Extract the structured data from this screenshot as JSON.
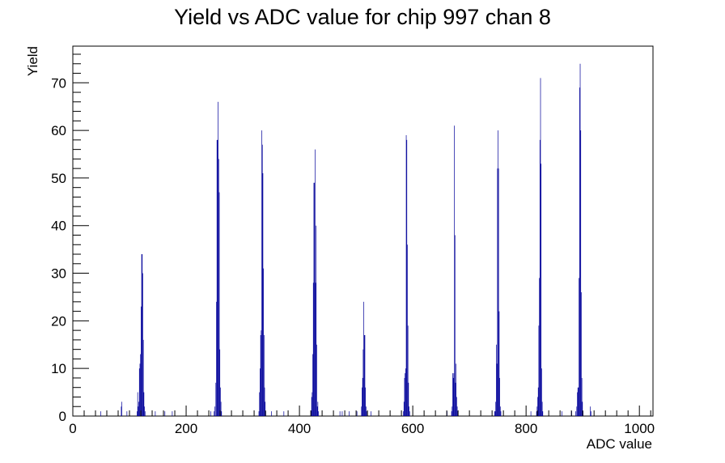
{
  "chart_data": {
    "type": "bar",
    "title": "Yield vs ADC value for chip 997 chan 8",
    "xlabel": "ADC value",
    "ylabel": "Yield",
    "xlim": [
      0,
      1024
    ],
    "ylim": [
      0,
      77.7
    ],
    "x_ticks": [
      0,
      200,
      400,
      600,
      800,
      1000
    ],
    "y_ticks": [
      0,
      10,
      20,
      30,
      40,
      50,
      60,
      70
    ],
    "grid": false,
    "legend": "none",
    "color": "#000099",
    "bin_width": 1,
    "bins": [
      [
        49,
        1
      ],
      [
        85,
        2
      ],
      [
        86,
        3
      ],
      [
        95,
        1
      ],
      [
        113,
        1
      ],
      [
        114,
        5
      ],
      [
        115,
        2
      ],
      [
        116,
        3
      ],
      [
        117,
        10
      ],
      [
        118,
        11
      ],
      [
        119,
        13
      ],
      [
        120,
        23
      ],
      [
        121,
        34
      ],
      [
        122,
        34
      ],
      [
        123,
        30
      ],
      [
        124,
        16
      ],
      [
        125,
        5
      ],
      [
        126,
        2
      ],
      [
        127,
        1
      ],
      [
        145,
        1
      ],
      [
        162,
        1
      ],
      [
        175,
        1
      ],
      [
        243,
        1
      ],
      [
        249,
        1
      ],
      [
        250,
        2
      ],
      [
        252,
        7
      ],
      [
        253,
        24
      ],
      [
        254,
        58
      ],
      [
        255,
        58
      ],
      [
        256,
        66
      ],
      [
        257,
        54
      ],
      [
        258,
        47
      ],
      [
        259,
        14
      ],
      [
        260,
        6
      ],
      [
        261,
        3
      ],
      [
        262,
        1
      ],
      [
        328,
        1
      ],
      [
        329,
        5
      ],
      [
        330,
        10
      ],
      [
        331,
        17
      ],
      [
        332,
        18
      ],
      [
        333,
        60
      ],
      [
        334,
        57
      ],
      [
        335,
        51
      ],
      [
        336,
        31
      ],
      [
        337,
        17
      ],
      [
        338,
        6
      ],
      [
        339,
        3
      ],
      [
        340,
        1
      ],
      [
        350,
        1
      ],
      [
        372,
        1
      ],
      [
        420,
        1
      ],
      [
        421,
        4
      ],
      [
        422,
        5
      ],
      [
        423,
        13
      ],
      [
        424,
        28
      ],
      [
        425,
        49
      ],
      [
        426,
        49
      ],
      [
        427,
        56
      ],
      [
        428,
        28
      ],
      [
        429,
        40
      ],
      [
        430,
        15
      ],
      [
        431,
        2
      ],
      [
        432,
        3
      ],
      [
        433,
        1
      ],
      [
        471,
        1
      ],
      [
        475,
        1
      ],
      [
        487,
        1
      ],
      [
        501,
        1
      ],
      [
        509,
        2
      ],
      [
        510,
        6
      ],
      [
        511,
        8
      ],
      [
        512,
        14
      ],
      [
        513,
        24
      ],
      [
        514,
        17
      ],
      [
        515,
        17
      ],
      [
        516,
        6
      ],
      [
        517,
        2
      ],
      [
        518,
        1
      ],
      [
        526,
        1
      ],
      [
        583,
        1
      ],
      [
        584,
        3
      ],
      [
        585,
        8
      ],
      [
        586,
        9
      ],
      [
        587,
        10
      ],
      [
        588,
        59
      ],
      [
        589,
        58
      ],
      [
        590,
        36
      ],
      [
        591,
        19
      ],
      [
        592,
        7
      ],
      [
        593,
        2
      ],
      [
        594,
        1
      ],
      [
        660,
        1
      ],
      [
        668,
        1
      ],
      [
        669,
        2
      ],
      [
        670,
        9
      ],
      [
        671,
        8
      ],
      [
        672,
        9
      ],
      [
        673,
        61
      ],
      [
        674,
        38
      ],
      [
        675,
        7
      ],
      [
        676,
        11
      ],
      [
        677,
        4
      ],
      [
        678,
        2
      ],
      [
        679,
        1
      ],
      [
        744,
        1
      ],
      [
        745,
        1
      ],
      [
        746,
        3
      ],
      [
        747,
        15
      ],
      [
        748,
        11
      ],
      [
        749,
        52
      ],
      [
        750,
        60
      ],
      [
        751,
        52
      ],
      [
        752,
        22
      ],
      [
        753,
        8
      ],
      [
        754,
        2
      ],
      [
        755,
        1
      ],
      [
        808,
        1
      ],
      [
        818,
        1
      ],
      [
        819,
        2
      ],
      [
        820,
        4
      ],
      [
        821,
        6
      ],
      [
        822,
        19
      ],
      [
        823,
        29
      ],
      [
        824,
        58
      ],
      [
        825,
        71
      ],
      [
        826,
        53
      ],
      [
        827,
        10
      ],
      [
        828,
        3
      ],
      [
        829,
        1
      ],
      [
        863,
        1
      ],
      [
        880,
        1
      ],
      [
        887,
        1
      ],
      [
        889,
        2
      ],
      [
        890,
        5
      ],
      [
        891,
        6
      ],
      [
        892,
        6
      ],
      [
        893,
        29
      ],
      [
        894,
        69
      ],
      [
        895,
        74
      ],
      [
        896,
        60
      ],
      [
        897,
        26
      ],
      [
        898,
        8
      ],
      [
        899,
        3
      ],
      [
        900,
        1
      ],
      [
        913,
        2
      ],
      [
        914,
        1
      ]
    ]
  }
}
